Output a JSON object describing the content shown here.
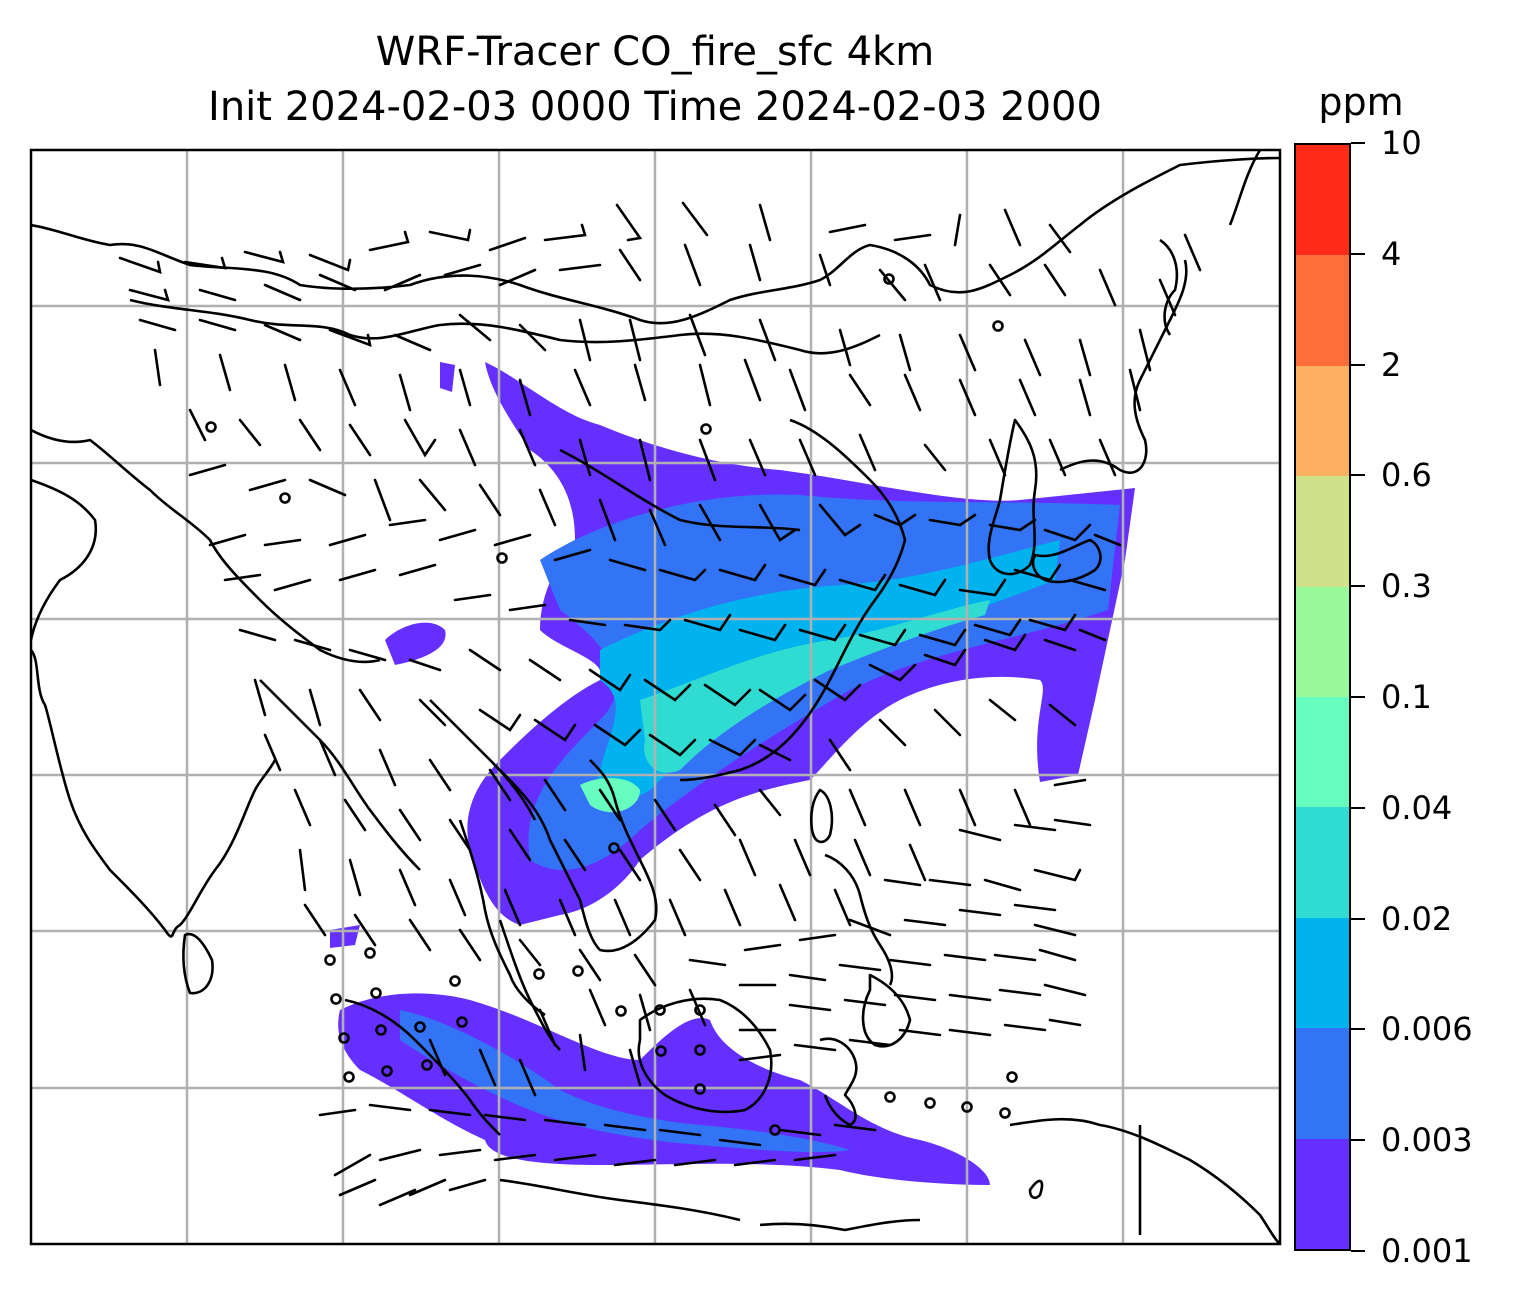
{
  "title": {
    "line1": "WRF-Tracer CO_fire_sfc 4km",
    "line2": "Init 2024-02-03 0000 Time 2024-02-03 2000"
  },
  "colorbar": {
    "unit": "ppm",
    "ticks": [
      "0.001",
      "0.003",
      "0.006",
      "0.02",
      "0.04",
      "0.1",
      "0.3",
      "0.6",
      "2",
      "4",
      "10"
    ],
    "colors": [
      "#6530ff",
      "#3373f5",
      "#00b2ee",
      "#30dcd2",
      "#66fdbe",
      "#98fa98",
      "#cfe28a",
      "#fdb060",
      "#ff6d3a",
      "#ff2b18"
    ]
  },
  "map": {
    "gridlines": true,
    "coastline_color": "#000000",
    "grid_color": "#b0b0b0",
    "wind_barbs": true
  }
}
